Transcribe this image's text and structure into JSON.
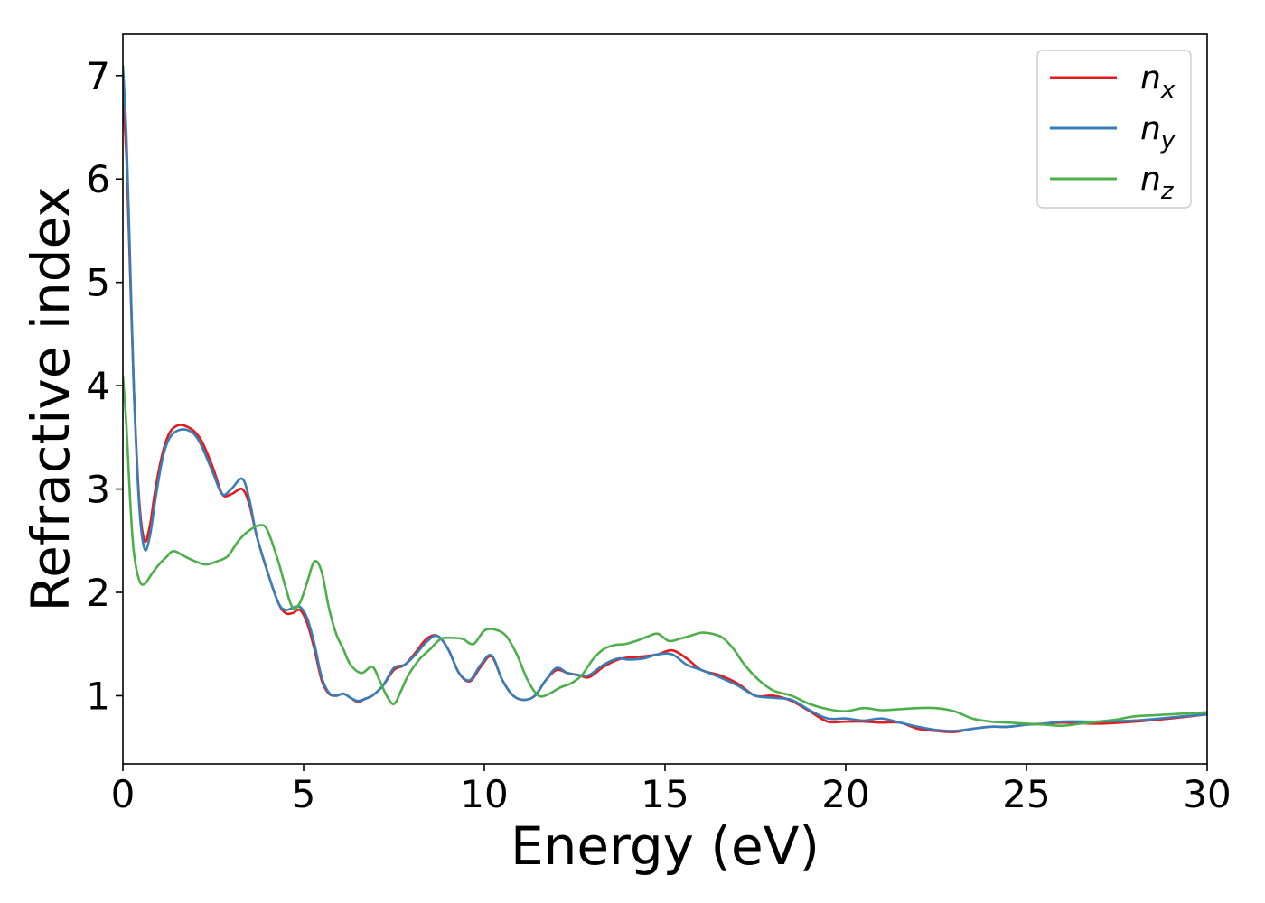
{
  "chart_data": {
    "type": "line",
    "xlabel": "Energy (eV)",
    "ylabel": "Refractive index",
    "xlim": [
      0,
      30
    ],
    "ylim": [
      0.34,
      7.4
    ],
    "xticks": [
      0,
      5,
      10,
      15,
      20,
      25,
      30
    ],
    "yticks": [
      1,
      2,
      3,
      4,
      5,
      6,
      7
    ],
    "grid": false,
    "legend_position": "top-right",
    "series": [
      {
        "name": "n_x",
        "name_base": "n",
        "name_sub": "x",
        "color": "#e41a1c",
        "x": [
          0,
          0.1,
          0.2,
          0.3,
          0.45,
          0.6,
          0.75,
          0.9,
          1.1,
          1.3,
          1.55,
          1.8,
          2.0,
          2.2,
          2.5,
          2.75,
          3.0,
          3.3,
          3.5,
          3.7,
          4.0,
          4.3,
          4.5,
          4.7,
          4.9,
          5.1,
          5.3,
          5.5,
          5.7,
          5.9,
          6.1,
          6.3,
          6.5,
          6.7,
          6.9,
          7.2,
          7.5,
          7.8,
          8.1,
          8.4,
          8.7,
          9.0,
          9.3,
          9.6,
          9.9,
          10.2,
          10.5,
          10.8,
          11.1,
          11.4,
          11.7,
          12.0,
          12.3,
          12.6,
          12.9,
          13.3,
          13.7,
          14.0,
          14.4,
          14.8,
          15.2,
          15.6,
          16.0,
          16.5,
          17.0,
          17.5,
          18.0,
          18.5,
          19.0,
          19.5,
          20.0,
          20.5,
          21.0,
          21.5,
          22.0,
          22.5,
          23.0,
          23.5,
          24.0,
          24.5,
          25.0,
          25.5,
          26.0,
          27.0,
          28.0,
          29.0,
          30.0
        ],
        "y": [
          6.8,
          6.2,
          5.1,
          4.0,
          2.9,
          2.5,
          2.65,
          3.0,
          3.35,
          3.55,
          3.62,
          3.6,
          3.55,
          3.45,
          3.2,
          2.95,
          2.95,
          3.0,
          2.85,
          2.55,
          2.2,
          1.9,
          1.8,
          1.8,
          1.83,
          1.7,
          1.45,
          1.15,
          1.02,
          1.0,
          1.02,
          0.98,
          0.94,
          0.97,
          1.0,
          1.1,
          1.25,
          1.3,
          1.42,
          1.55,
          1.58,
          1.45,
          1.22,
          1.14,
          1.28,
          1.38,
          1.15,
          1.0,
          0.96,
          1.0,
          1.15,
          1.25,
          1.22,
          1.2,
          1.18,
          1.28,
          1.35,
          1.37,
          1.38,
          1.4,
          1.44,
          1.36,
          1.25,
          1.2,
          1.12,
          1.0,
          1.0,
          0.95,
          0.85,
          0.75,
          0.75,
          0.75,
          0.74,
          0.74,
          0.68,
          0.66,
          0.65,
          0.68,
          0.7,
          0.7,
          0.72,
          0.73,
          0.74,
          0.73,
          0.75,
          0.78,
          0.82
        ]
      },
      {
        "name": "n_y",
        "name_base": "n",
        "name_sub": "y",
        "color": "#377eb8",
        "x": [
          0,
          0.1,
          0.2,
          0.3,
          0.45,
          0.6,
          0.75,
          0.9,
          1.1,
          1.3,
          1.55,
          1.8,
          2.0,
          2.2,
          2.5,
          2.75,
          3.0,
          3.3,
          3.5,
          3.7,
          4.0,
          4.3,
          4.5,
          4.7,
          4.9,
          5.1,
          5.3,
          5.5,
          5.7,
          5.9,
          6.1,
          6.3,
          6.5,
          6.7,
          6.9,
          7.2,
          7.5,
          7.8,
          8.1,
          8.4,
          8.7,
          9.0,
          9.3,
          9.6,
          9.9,
          10.2,
          10.5,
          10.8,
          11.1,
          11.4,
          11.7,
          12.0,
          12.3,
          12.6,
          12.9,
          13.3,
          13.7,
          14.0,
          14.4,
          14.8,
          15.2,
          15.6,
          16.0,
          16.5,
          17.0,
          17.5,
          18.0,
          18.5,
          19.0,
          19.5,
          20.0,
          20.5,
          21.0,
          21.5,
          22.0,
          22.5,
          23.0,
          23.5,
          24.0,
          24.5,
          25.0,
          25.5,
          26.0,
          27.0,
          28.0,
          29.0,
          30.0
        ],
        "y": [
          7.1,
          6.4,
          5.2,
          4.0,
          2.85,
          2.42,
          2.55,
          2.9,
          3.3,
          3.5,
          3.57,
          3.57,
          3.52,
          3.4,
          3.15,
          2.95,
          3.0,
          3.1,
          2.9,
          2.55,
          2.2,
          1.9,
          1.83,
          1.85,
          1.86,
          1.75,
          1.5,
          1.18,
          1.03,
          1.0,
          1.02,
          0.98,
          0.95,
          0.97,
          1.0,
          1.1,
          1.27,
          1.3,
          1.4,
          1.52,
          1.58,
          1.45,
          1.22,
          1.15,
          1.3,
          1.39,
          1.15,
          1.0,
          0.96,
          1.0,
          1.15,
          1.27,
          1.22,
          1.2,
          1.2,
          1.3,
          1.36,
          1.35,
          1.36,
          1.4,
          1.4,
          1.3,
          1.25,
          1.18,
          1.1,
          1.0,
          0.98,
          0.96,
          0.86,
          0.78,
          0.78,
          0.76,
          0.78,
          0.74,
          0.7,
          0.67,
          0.66,
          0.68,
          0.7,
          0.7,
          0.72,
          0.73,
          0.75,
          0.75,
          0.76,
          0.79,
          0.82
        ]
      },
      {
        "name": "n_z",
        "name_base": "n",
        "name_sub": "z",
        "color": "#4daf4a",
        "x": [
          0,
          0.1,
          0.2,
          0.3,
          0.45,
          0.6,
          0.8,
          1.0,
          1.2,
          1.4,
          1.7,
          2.0,
          2.3,
          2.6,
          2.9,
          3.2,
          3.5,
          3.8,
          4.0,
          4.3,
          4.5,
          4.7,
          4.9,
          5.1,
          5.3,
          5.5,
          5.7,
          5.9,
          6.1,
          6.3,
          6.6,
          6.9,
          7.1,
          7.3,
          7.5,
          7.7,
          7.9,
          8.2,
          8.5,
          8.8,
          9.1,
          9.4,
          9.7,
          10.0,
          10.3,
          10.6,
          10.9,
          11.2,
          11.5,
          11.8,
          12.1,
          12.4,
          12.7,
          13.0,
          13.3,
          13.6,
          13.9,
          14.2,
          14.5,
          14.8,
          15.1,
          15.4,
          15.7,
          16.0,
          16.3,
          16.6,
          16.9,
          17.2,
          17.6,
          18.0,
          18.5,
          19.0,
          19.5,
          20.0,
          20.5,
          21.0,
          21.5,
          22.0,
          22.5,
          23.0,
          23.5,
          24.0,
          24.5,
          25.0,
          25.5,
          26.0,
          26.5,
          27.0,
          27.5,
          28.0,
          29.0,
          30.0
        ],
        "y": [
          4.1,
          3.6,
          2.9,
          2.4,
          2.12,
          2.08,
          2.18,
          2.27,
          2.34,
          2.4,
          2.35,
          2.3,
          2.27,
          2.3,
          2.35,
          2.5,
          2.6,
          2.65,
          2.6,
          2.3,
          2.05,
          1.85,
          1.9,
          2.1,
          2.3,
          2.2,
          1.85,
          1.6,
          1.45,
          1.3,
          1.22,
          1.28,
          1.15,
          1.0,
          0.92,
          1.05,
          1.2,
          1.35,
          1.45,
          1.55,
          1.56,
          1.55,
          1.5,
          1.63,
          1.64,
          1.58,
          1.4,
          1.15,
          1.0,
          1.02,
          1.08,
          1.12,
          1.2,
          1.35,
          1.45,
          1.49,
          1.5,
          1.53,
          1.57,
          1.6,
          1.53,
          1.55,
          1.58,
          1.61,
          1.6,
          1.56,
          1.45,
          1.3,
          1.15,
          1.05,
          1.0,
          0.92,
          0.87,
          0.85,
          0.88,
          0.86,
          0.87,
          0.88,
          0.88,
          0.85,
          0.78,
          0.75,
          0.74,
          0.73,
          0.72,
          0.71,
          0.73,
          0.75,
          0.77,
          0.8,
          0.82,
          0.84
        ]
      }
    ]
  }
}
